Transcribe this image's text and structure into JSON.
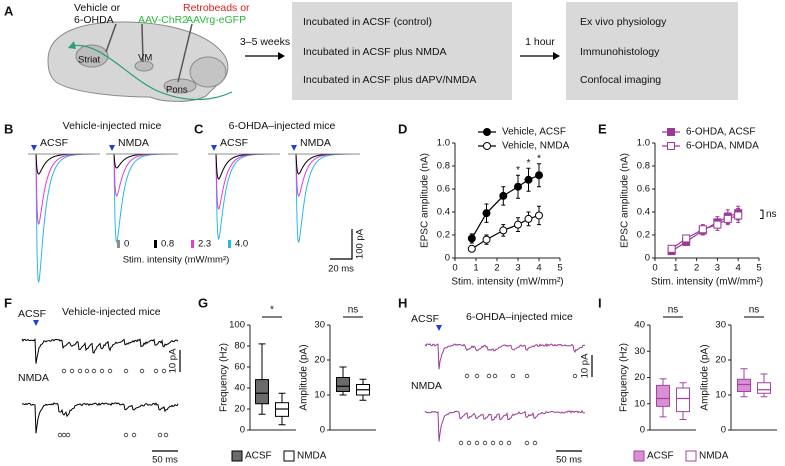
{
  "panel_labels": [
    "A",
    "B",
    "C",
    "D",
    "E",
    "F",
    "G",
    "H",
    "I"
  ],
  "schematic": {
    "injection_1": [
      "Vehicle or",
      "6-OHDA"
    ],
    "injection_2": "AAV-ChR2",
    "injection_3": [
      "Retrobeads or",
      "AAVrg-eGFP"
    ],
    "regions": [
      "Striat",
      "VM",
      "Pons"
    ],
    "delay_1": "3–5 weeks",
    "incubations": [
      "Incubated in ACSF (control)",
      "Incubated in ACSF plus NMDA",
      "Incubated in ACSF plus dAPV/NMDA"
    ],
    "delay_2": "1 hour",
    "outcomes": [
      "Ex vivo physiology",
      "Immunohistology",
      "Confocal imaging"
    ]
  },
  "evoked": {
    "groups": [
      {
        "title": "Vehicle-injected mice",
        "conditions": [
          "ACSF",
          "NMDA"
        ]
      },
      {
        "title": "6-OHDA–injected mice",
        "conditions": [
          "ACSF",
          "NMDA"
        ]
      }
    ],
    "intensities": [
      {
        "label": "0",
        "color": "#8c8c8c"
      },
      {
        "label": "0.8",
        "color": "#000000"
      },
      {
        "label": "2.3",
        "color": "#e23be0"
      },
      {
        "label": "4.0",
        "color": "#2bb7e6"
      }
    ],
    "intensity_title": "Stim. intensity (mW/mm²)",
    "scale_y": "100 pA",
    "scale_x": "20 ms"
  },
  "spontaneous": [
    {
      "title": "Vehicle-injected mice",
      "conditions": [
        "ACSF",
        "NMDA"
      ],
      "color": "#000000",
      "scale_y": "10 pA",
      "scale_x": "50 ms"
    },
    {
      "title": "6-OHDA–injected mice",
      "conditions": [
        "ACSF",
        "NMDA"
      ],
      "color": "#9b3a96",
      "scale_y": "10 pA",
      "scale_x": "50 ms"
    }
  ],
  "chart_data": [
    {
      "type": "line",
      "xlabel": "Stim. intensity (mW/mm²)",
      "ylabel": "EPSC amplitude (nA)",
      "x": [
        0.8,
        1.5,
        2.3,
        3.0,
        3.5,
        4.0
      ],
      "xlim": [
        0,
        5
      ],
      "xticks": [
        0,
        1,
        2,
        3,
        4,
        5
      ],
      "ylim": [
        0,
        1
      ],
      "yticks": [
        0,
        0.2,
        0.4,
        0.6,
        0.8,
        {
          "value": 1,
          "label": "1.0"
        }
      ],
      "series": [
        {
          "name": "Vehicle, ACSF",
          "color": "#000000",
          "marker": "filled-circle",
          "values": [
            0.17,
            0.39,
            0.54,
            0.62,
            0.68,
            0.72
          ],
          "errors": [
            0.04,
            0.08,
            0.08,
            0.1,
            0.1,
            0.1
          ]
        },
        {
          "name": "Vehicle, NMDA",
          "color": "#000000",
          "marker": "open-circle",
          "values": [
            0.08,
            0.16,
            0.24,
            0.29,
            0.34,
            0.37
          ],
          "errors": [
            0.02,
            0.04,
            0.05,
            0.06,
            0.06,
            0.08
          ]
        }
      ],
      "annotations": [
        {
          "text": "*",
          "x": 3.0
        },
        {
          "text": "*",
          "x": 3.5
        },
        {
          "text": "*",
          "x": 4.0
        }
      ]
    },
    {
      "type": "line",
      "xlabel": "Stim. intensity (mW/mm²)",
      "ylabel": "EPSC amplitude (nA)",
      "x": [
        0.8,
        1.5,
        2.3,
        3.0,
        3.5,
        4.0
      ],
      "xlim": [
        0,
        5
      ],
      "xticks": [
        0,
        1,
        2,
        3,
        4,
        5
      ],
      "ylim": [
        0,
        1
      ],
      "yticks": [
        0,
        0.2,
        0.4,
        0.6,
        0.8,
        {
          "value": 1,
          "label": "1.0"
        }
      ],
      "series": [
        {
          "name": "6-OHDA, ACSF",
          "color": "#9b3a96",
          "marker": "filled-square",
          "values": [
            0.06,
            0.14,
            0.24,
            0.31,
            0.36,
            0.39
          ],
          "errors": [
            0.02,
            0.03,
            0.04,
            0.05,
            0.06,
            0.06
          ]
        },
        {
          "name": "6-OHDA, NMDA",
          "color": "#9b3a96",
          "marker": "open-square",
          "values": [
            0.08,
            0.17,
            0.25,
            0.29,
            0.34,
            0.37
          ],
          "errors": [
            0.02,
            0.03,
            0.04,
            0.05,
            0.05,
            0.06
          ]
        }
      ],
      "annotations": [
        {
          "text": "ns"
        }
      ]
    },
    {
      "type": "box",
      "series": [
        {
          "name": "ACSF",
          "color": "#000000",
          "fill": "#6b6b6b"
        },
        {
          "name": "NMDA",
          "color": "#000000",
          "fill": "#ffffff"
        }
      ],
      "subplots": [
        {
          "ylabel": "Frequency (Hz)",
          "ylim": [
            0,
            100
          ],
          "yticks": [
            0,
            20,
            40,
            60,
            80,
            100
          ],
          "comparison": "*",
          "boxes": [
            {
              "min": 15,
              "q1": 25,
              "median": 35,
              "q3": 48,
              "max": 82
            },
            {
              "min": 5,
              "q1": 13,
              "median": 20,
              "q3": 26,
              "max": 35
            }
          ]
        },
        {
          "ylabel": "Amplitude (pA)",
          "ylim": [
            0,
            30
          ],
          "yticks": [
            0,
            10,
            20,
            30
          ],
          "comparison": "ns",
          "boxes": [
            {
              "min": 10,
              "q1": 11,
              "median": 12.5,
              "q3": 15,
              "max": 18
            },
            {
              "min": 8.5,
              "q1": 10,
              "median": 11.5,
              "q3": 13,
              "max": 14.5
            }
          ]
        }
      ]
    },
    {
      "type": "box",
      "series": [
        {
          "name": "ACSF",
          "color": "#a3449e",
          "fill": "#d88fd3"
        },
        {
          "name": "NMDA",
          "color": "#a3449e",
          "fill": "#ffffff"
        }
      ],
      "subplots": [
        {
          "ylabel": "Frequency (Hz)",
          "ylim": [
            0,
            40
          ],
          "yticks": [
            0,
            10,
            20,
            30,
            40
          ],
          "comparison": "ns",
          "boxes": [
            {
              "min": 5,
              "q1": 9,
              "median": 12,
              "q3": 17,
              "max": 19.5
            },
            {
              "min": 4,
              "q1": 7,
              "median": 12,
              "q3": 16,
              "max": 18
            }
          ]
        },
        {
          "ylabel": "Amplitude (pA)",
          "ylim": [
            0,
            30
          ],
          "yticks": [
            0,
            10,
            20,
            30
          ],
          "comparison": "ns",
          "boxes": [
            {
              "min": 9.5,
              "q1": 11,
              "median": 13,
              "q3": 14.5,
              "max": 17.5
            },
            {
              "min": 9.5,
              "q1": 10.5,
              "median": 11.5,
              "q3": 13.5,
              "max": 16
            }
          ]
        }
      ]
    }
  ]
}
